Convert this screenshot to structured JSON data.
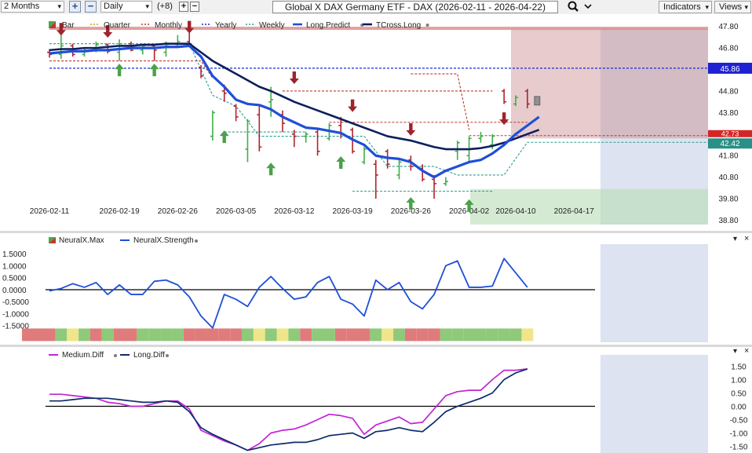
{
  "toolbar": {
    "period": "2 Months",
    "plus_icon": "+",
    "minus_icon": "−",
    "interval": "Daily",
    "indicator_count": "(+8)",
    "small_plus": "+",
    "small_minus": "−",
    "title": "Global X DAX Germany ETF - DAX (2026-02-11 - 2026-04-22)",
    "search_icon": "magnifier",
    "indicators_label": "Indicators",
    "views_label": "Views",
    "dropdown_arrow": "▾"
  },
  "chart_data": [
    {
      "type": "line",
      "id": "price",
      "legend": [
        "Bar",
        "Quarter",
        "Monthly",
        "Yearly",
        "Weekly",
        "Long.Predict",
        "TCross.Long"
      ],
      "colors": {
        "Bar": "#c0392b",
        "Quarter": "#c8a000",
        "Monthly": "#c0392b",
        "Yearly": "#1a2ad8",
        "Weekly": "#2a9d8f",
        "Long.Predict": "#1f4fd8",
        "TCross.Long": "#0d1f5c",
        "bull": "#3fae49",
        "bear": "#b0242c"
      },
      "x_labels": [
        "2026-02-11",
        "2026-02-19",
        "2026-02-26",
        "2026-03-05",
        "2026-03-12",
        "2026-03-19",
        "2026-03-26",
        "2026-04-02",
        "2026-04-10",
        "2026-04-17"
      ],
      "y_ticks": [
        38.8,
        39.8,
        40.8,
        41.8,
        42.8,
        43.8,
        44.8,
        45.8,
        46.8,
        47.8
      ],
      "ylim": [
        38.6,
        48.3
      ],
      "markers": {
        "yearly": "45.86",
        "monthly": "42.73",
        "weekly": "42.42"
      },
      "bars": [
        {
          "d": "02-11",
          "o": 46.6,
          "h": 46.75,
          "l": 46.35,
          "c": 46.5
        },
        {
          "d": "02-12",
          "o": 46.5,
          "h": 47.45,
          "l": 46.3,
          "c": 46.9
        },
        {
          "d": "02-13",
          "o": 46.9,
          "h": 47.0,
          "l": 46.4,
          "c": 46.5
        },
        {
          "d": "02-16",
          "o": 46.5,
          "h": 46.8,
          "l": 46.4,
          "c": 46.7
        },
        {
          "d": "02-17",
          "o": 46.7,
          "h": 47.1,
          "l": 46.6,
          "c": 46.95
        },
        {
          "d": "02-18",
          "o": 46.95,
          "h": 47.0,
          "l": 46.55,
          "c": 46.65
        },
        {
          "d": "02-19",
          "o": 46.6,
          "h": 47.2,
          "l": 46.2,
          "c": 47.0
        },
        {
          "d": "02-20",
          "o": 47.0,
          "h": 47.1,
          "l": 46.65,
          "c": 46.7
        },
        {
          "d": "02-23",
          "o": 46.7,
          "h": 46.95,
          "l": 46.5,
          "c": 46.9
        },
        {
          "d": "02-24",
          "o": 46.9,
          "h": 47.0,
          "l": 46.2,
          "c": 46.7
        },
        {
          "d": "02-25",
          "o": 46.6,
          "h": 47.1,
          "l": 46.4,
          "c": 46.9
        },
        {
          "d": "02-26",
          "o": 46.9,
          "h": 47.4,
          "l": 46.8,
          "c": 47.1
        },
        {
          "d": "02-27",
          "o": 47.1,
          "h": 47.5,
          "l": 46.9,
          "c": 47.0
        },
        {
          "d": "03-02",
          "o": 45.9,
          "h": 46.0,
          "l": 45.4,
          "c": 45.5
        },
        {
          "d": "03-03",
          "o": 42.7,
          "h": 43.9,
          "l": 42.5,
          "c": 43.8
        },
        {
          "d": "03-04",
          "o": 44.8,
          "h": 45.1,
          "l": 44.3,
          "c": 44.7
        },
        {
          "d": "03-05",
          "o": 44.1,
          "h": 44.2,
          "l": 43.4,
          "c": 43.6
        },
        {
          "d": "03-06",
          "o": 42.1,
          "h": 43.5,
          "l": 41.5,
          "c": 43.4
        },
        {
          "d": "03-09",
          "o": 43.7,
          "h": 44.1,
          "l": 42.0,
          "c": 42.2
        },
        {
          "d": "03-10",
          "o": 44.3,
          "h": 45.0,
          "l": 43.6,
          "c": 44.4
        },
        {
          "d": "03-11",
          "o": 43.7,
          "h": 43.9,
          "l": 42.9,
          "c": 43.3
        },
        {
          "d": "03-12",
          "o": 42.8,
          "h": 43.0,
          "l": 42.2,
          "c": 42.7
        },
        {
          "d": "03-13",
          "o": 42.7,
          "h": 42.9,
          "l": 42.4,
          "c": 42.8
        },
        {
          "d": "03-16",
          "o": 42.9,
          "h": 43.0,
          "l": 41.8,
          "c": 42.0
        },
        {
          "d": "03-17",
          "o": 42.6,
          "h": 43.3,
          "l": 42.5,
          "c": 43.2
        },
        {
          "d": "03-18",
          "o": 43.2,
          "h": 43.6,
          "l": 42.6,
          "c": 42.8
        },
        {
          "d": "03-19",
          "o": 43.0,
          "h": 43.1,
          "l": 41.9,
          "c": 42.0
        },
        {
          "d": "03-20",
          "o": 41.5,
          "h": 42.2,
          "l": 41.4,
          "c": 42.1
        },
        {
          "d": "03-23",
          "o": 41.4,
          "h": 41.6,
          "l": 39.8,
          "c": 40.9
        },
        {
          "d": "03-24",
          "o": 42.0,
          "h": 42.1,
          "l": 41.2,
          "c": 41.4
        },
        {
          "d": "03-25",
          "o": 40.9,
          "h": 41.6,
          "l": 40.7,
          "c": 41.5
        },
        {
          "d": "03-26",
          "o": 41.6,
          "h": 41.8,
          "l": 41.1,
          "c": 41.3
        },
        {
          "d": "03-27",
          "o": 41.2,
          "h": 41.4,
          "l": 40.6,
          "c": 40.7
        },
        {
          "d": "03-30",
          "o": 40.7,
          "h": 40.9,
          "l": 39.8,
          "c": 40.5
        },
        {
          "d": "03-31",
          "o": 40.5,
          "h": 40.8,
          "l": 40.4,
          "c": 40.6
        },
        {
          "d": "04-01",
          "o": 42.0,
          "h": 42.5,
          "l": 41.6,
          "c": 42.4
        },
        {
          "d": "04-02",
          "o": 41.8,
          "h": 42.7,
          "l": 41.5,
          "c": 42.6
        },
        {
          "d": "04-03",
          "o": 42.6,
          "h": 42.9,
          "l": 42.4,
          "c": 42.7
        },
        {
          "d": "04-06",
          "o": 42.3,
          "h": 42.8,
          "l": 42.1,
          "c": 42.7
        },
        {
          "d": "04-07",
          "o": 44.8,
          "h": 44.9,
          "l": 44.2,
          "c": 44.3
        },
        {
          "d": "04-08",
          "o": 44.2,
          "h": 44.6,
          "l": 44.1,
          "c": 44.5
        },
        {
          "d": "04-09",
          "o": 44.8,
          "h": 44.9,
          "l": 44.0,
          "c": 44.2
        }
      ],
      "long_predict": [
        46.55,
        46.6,
        46.65,
        46.65,
        46.7,
        46.7,
        46.75,
        46.8,
        46.8,
        46.8,
        46.85,
        46.85,
        46.9,
        46.4,
        45.5,
        45.0,
        44.4,
        44.2,
        44.15,
        43.95,
        43.6,
        43.35,
        43.1,
        43.05,
        42.95,
        42.85,
        42.55,
        42.3,
        41.8,
        41.7,
        41.65,
        41.5,
        41.1,
        40.8,
        41.1,
        41.3,
        41.5,
        41.6,
        41.9,
        42.3,
        42.8,
        43.2,
        43.6
      ],
      "tcross_long": [
        46.7,
        46.75,
        46.75,
        46.8,
        46.8,
        46.85,
        46.9,
        46.9,
        46.95,
        46.95,
        47.0,
        47.0,
        47.0,
        46.6,
        46.2,
        45.9,
        45.6,
        45.3,
        45.0,
        44.8,
        44.55,
        44.3,
        44.1,
        43.9,
        43.7,
        43.5,
        43.3,
        43.1,
        42.9,
        42.7,
        42.6,
        42.5,
        42.35,
        42.2,
        42.1,
        42.1,
        42.1,
        42.15,
        42.25,
        42.4,
        42.6,
        42.8,
        43.0
      ]
    },
    {
      "type": "line",
      "id": "neuralx",
      "legend": [
        "NeuralX.Max",
        "NeuralX.Strength"
      ],
      "y_ticks": [
        1.5,
        1.0,
        0.5,
        0.0,
        -0.5,
        -1.0,
        -1.5
      ],
      "y_tick_labels": [
        "1.5000",
        "1.0000",
        "0.5000",
        "0.0000",
        "-0.5000",
        "-1.0000",
        "-1.5000"
      ],
      "ylim": [
        -2.0,
        1.9
      ],
      "strength": [
        -0.05,
        0.05,
        0.25,
        0.1,
        0.3,
        -0.2,
        0.2,
        -0.2,
        -0.2,
        0.35,
        0.4,
        0.2,
        -0.3,
        -1.1,
        -1.6,
        -0.2,
        -0.4,
        -0.7,
        0.1,
        0.55,
        0.05,
        -0.4,
        -0.3,
        0.3,
        0.55,
        -0.4,
        -0.6,
        -1.1,
        0.4,
        0.0,
        0.3,
        -0.5,
        -0.8,
        -0.2,
        1.0,
        1.2,
        0.1,
        0.1,
        0.15,
        1.3,
        0.7,
        0.1
      ],
      "strength_bar": [
        "r",
        "g",
        "y",
        "g",
        "r",
        "g",
        "r",
        "r",
        "g",
        "g",
        "g",
        "g",
        "r",
        "r",
        "r",
        "r",
        "r",
        "g",
        "y",
        "g",
        "y",
        "g",
        "r",
        "g",
        "g",
        "r",
        "r",
        "r",
        "g",
        "y",
        "g",
        "r",
        "r",
        "r",
        "g",
        "g",
        "g",
        "g",
        "g",
        "g",
        "g",
        "y"
      ]
    },
    {
      "type": "line",
      "id": "diff",
      "legend": [
        "Medium.Diff",
        "Long.Diff"
      ],
      "y_ticks": [
        1.5,
        1.0,
        0.5,
        0.0,
        -0.5,
        -1.0,
        -1.5
      ],
      "y_tick_labels": [
        "1.50",
        "1.00",
        "0.50",
        "0.00",
        "-0.50",
        "-1.00",
        "-1.50"
      ],
      "ylim": [
        -1.75,
        1.75
      ],
      "medium_diff": [
        0.45,
        0.45,
        0.4,
        0.35,
        0.3,
        0.15,
        0.1,
        0.0,
        0.0,
        0.1,
        0.2,
        0.2,
        -0.1,
        -0.9,
        -1.1,
        -1.3,
        -1.45,
        -1.65,
        -1.4,
        -1.0,
        -0.9,
        -0.85,
        -0.7,
        -0.5,
        -0.3,
        -0.35,
        -0.45,
        -1.05,
        -0.7,
        -0.55,
        -0.4,
        -0.65,
        -0.6,
        -0.1,
        0.4,
        0.55,
        0.6,
        0.6,
        1.0,
        1.35,
        1.35,
        1.4
      ],
      "long_diff": [
        0.2,
        0.2,
        0.25,
        0.3,
        0.3,
        0.3,
        0.25,
        0.2,
        0.15,
        0.15,
        0.2,
        0.15,
        -0.2,
        -0.8,
        -1.05,
        -1.25,
        -1.45,
        -1.65,
        -1.55,
        -1.45,
        -1.4,
        -1.35,
        -1.35,
        -1.25,
        -1.1,
        -1.05,
        -1.0,
        -1.2,
        -0.95,
        -0.9,
        -0.8,
        -0.9,
        -0.95,
        -0.6,
        -0.2,
        0.0,
        0.15,
        0.3,
        0.5,
        1.0,
        1.25,
        1.4
      ]
    }
  ]
}
